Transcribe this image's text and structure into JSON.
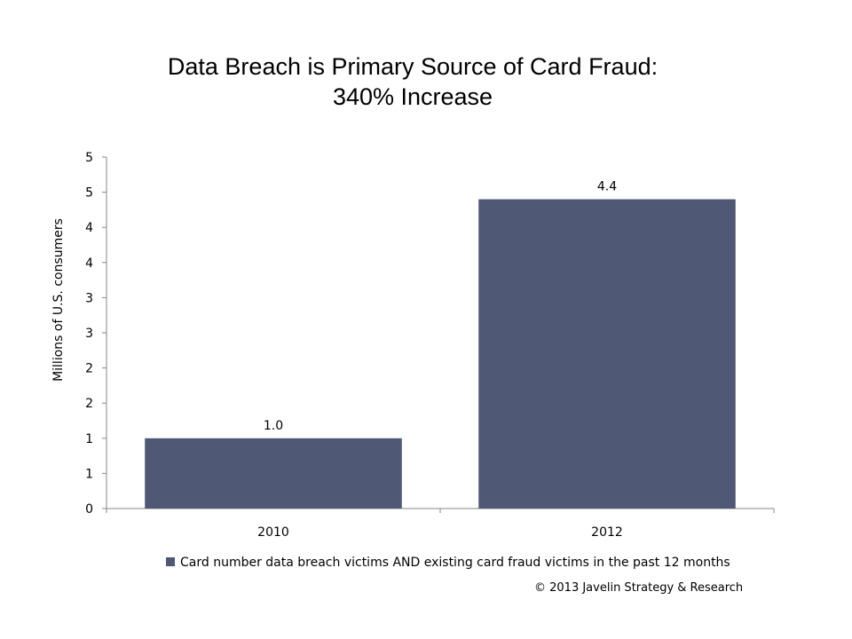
{
  "chart_data": {
    "type": "bar",
    "title_lines": [
      "Data Breach is Primary Source of Card Fraud:",
      "340% Increase"
    ],
    "xlabel": "",
    "ylabel": "Millions of U.S. consumers",
    "categories": [
      "2010",
      "2012"
    ],
    "series": [
      {
        "name": "Card number data breach victims AND existing card fraud victims in the past 12 months",
        "values": [
          1.0,
          4.4
        ],
        "data_labels": [
          "1.0",
          "4.4"
        ]
      }
    ],
    "ylim": [
      0,
      5
    ],
    "y_tick_values": [
      0,
      0.5,
      1,
      1.5,
      2,
      2.5,
      3,
      3.5,
      4,
      4.5,
      5
    ],
    "y_tick_labels": [
      "0",
      "1",
      "1",
      "2",
      "2",
      "3",
      "3",
      "4",
      "4",
      "5",
      "5"
    ],
    "grid": false,
    "legend_position": "bottom",
    "bar_color": "#4f5875"
  },
  "footer": {
    "copyright": "© 2013 Javelin Strategy & Research"
  }
}
